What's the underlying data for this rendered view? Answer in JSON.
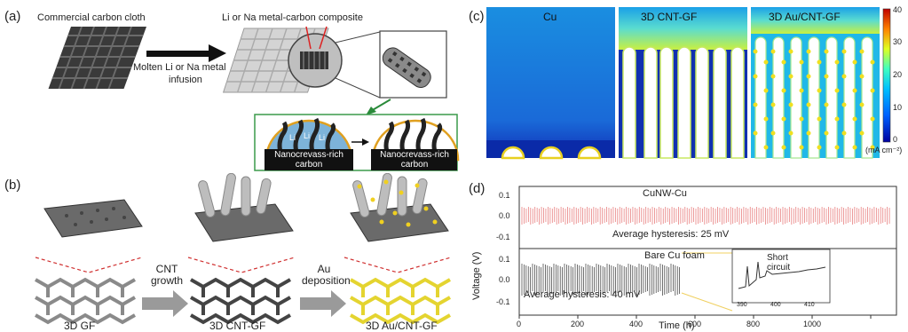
{
  "panel_a": {
    "label": "(a)",
    "cloth_label": "Commercial carbon cloth",
    "composite_label": "Li or Na metal-carbon composite",
    "arrow_label_line1": "Molten Li or Na metal",
    "arrow_label_line2": "infusion",
    "li_labels": [
      "Li",
      "Li",
      "Li"
    ],
    "nanocrevass_left_line1": "Nanocrevass-rich",
    "nanocrevass_left_line2": "carbon",
    "nanocrevass_right_line1": "Nanocrevass-rich",
    "nanocrevass_right_line2": "carbon"
  },
  "panel_b": {
    "label": "(b)",
    "step1_line1": "CNT",
    "step1_line2": "growth",
    "step2_line1": "Au",
    "step2_line2": "deposition",
    "captions": [
      "3D GF",
      "3D CNT-GF",
      "3D Au/CNT-GF"
    ]
  },
  "panel_c": {
    "label": "(c)",
    "maps": [
      "Cu",
      "3D CNT-GF",
      "3D Au/CNT-GF"
    ],
    "colorbar_ticks": [
      "40",
      "30",
      "20",
      "10",
      "0"
    ],
    "colorbar_unit": "(mA cm⁻²)"
  },
  "panel_d": {
    "label": "(d)",
    "top_title": "CuNW-Cu",
    "top_note": "Average hysteresis: 25 mV",
    "bottom_title": "Bare Cu foam",
    "bottom_note": "Average hysteresis: 40 mV",
    "inset_note_line1": "Short",
    "inset_note_line2": "circuit",
    "ylabel": "Voltage (V)",
    "xlabel": "Time (h)",
    "y_ticks_top": [
      "0.1",
      "0.0",
      "-0.1"
    ],
    "y_ticks_bottom": [
      "0.1",
      "0.0",
      "-0.1"
    ],
    "x_ticks": [
      "0",
      "200",
      "400",
      "600",
      "800",
      "1000"
    ],
    "inset_x_ticks": [
      "390",
      "400",
      "410"
    ],
    "colors": {
      "top_trace": "#e88080",
      "bottom_trace": "#333333",
      "highlight": "#f0d060"
    }
  }
}
